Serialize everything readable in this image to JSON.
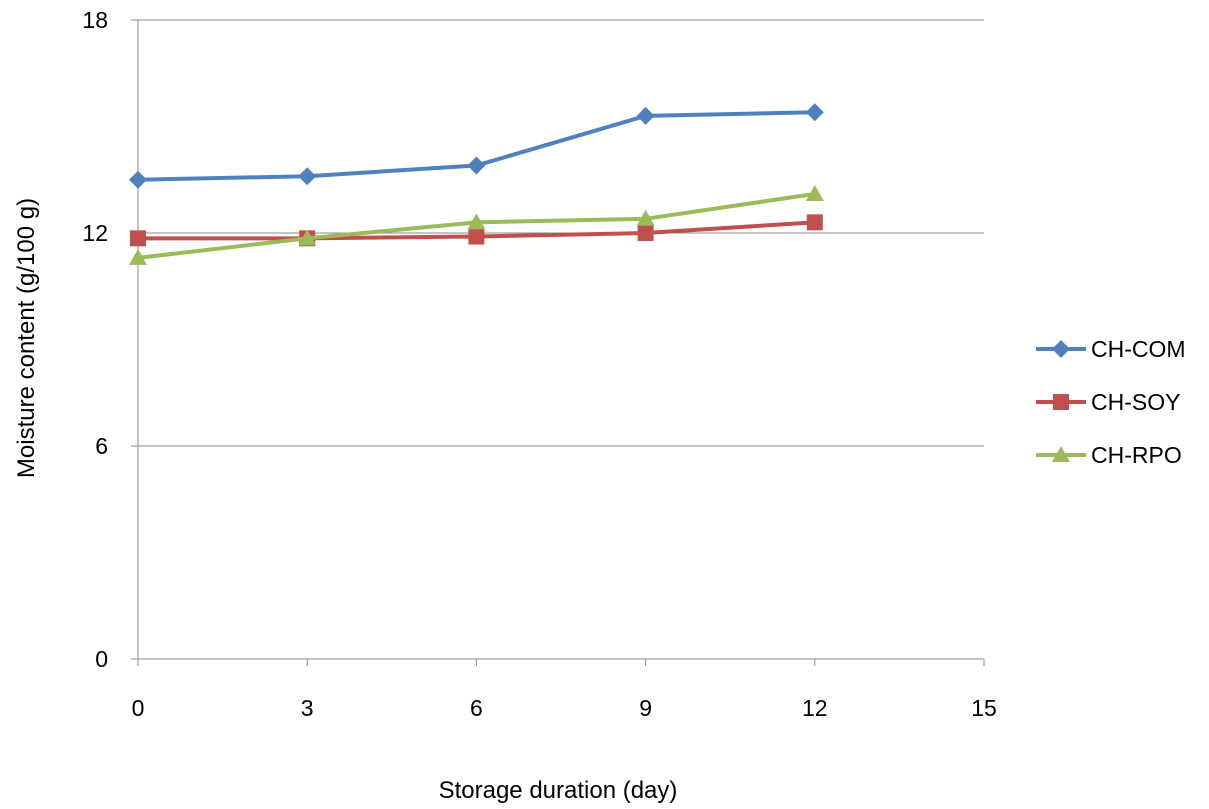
{
  "chart_data": {
    "type": "line",
    "title": "",
    "xlabel": "Storage duration (day)",
    "ylabel": "Moisture content (g/100 g)",
    "xlim": [
      0,
      15
    ],
    "ylim": [
      0,
      18
    ],
    "x_ticks": [
      0,
      3,
      6,
      9,
      12,
      15
    ],
    "y_ticks": [
      0,
      6,
      12,
      18
    ],
    "grid": "horizontal",
    "legend_position": "right",
    "x": [
      0,
      3,
      6,
      9,
      12
    ],
    "series": [
      {
        "name": "CH-COM",
        "values": [
          13.5,
          13.6,
          13.9,
          15.3,
          15.4
        ],
        "color": "#4F81BD",
        "marker": "diamond"
      },
      {
        "name": "CH-SOY",
        "values": [
          11.85,
          11.85,
          11.9,
          12.0,
          12.3
        ],
        "color": "#C0504D",
        "marker": "square"
      },
      {
        "name": "CH-RPO",
        "values": [
          11.3,
          11.85,
          12.3,
          12.4,
          13.1
        ],
        "color": "#9BBB59",
        "marker": "triangle"
      }
    ]
  }
}
